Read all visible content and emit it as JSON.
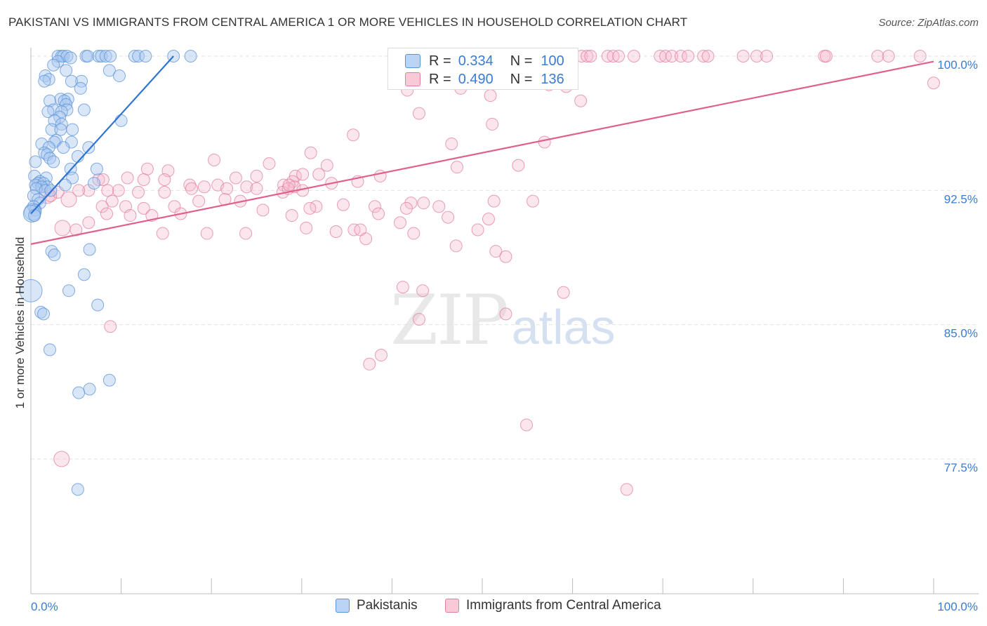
{
  "title": "PAKISTANI VS IMMIGRANTS FROM CENTRAL AMERICA 1 OR MORE VEHICLES IN HOUSEHOLD CORRELATION CHART",
  "source": "Source: ZipAtlas.com",
  "watermark": {
    "zip": "ZIP",
    "atlas": "atlas"
  },
  "colors": {
    "blue_fill": "#a8c8f0",
    "blue_stroke": "#5b93d8",
    "blue_line": "#2f74d0",
    "pink_fill": "#f5b8cb",
    "pink_stroke": "#e07fa0",
    "pink_line": "#e0608c",
    "tick_label": "#3a7bd5",
    "grid": "#e2e2e2",
    "axis": "#bbbbbb"
  },
  "legend": {
    "r_label": "R =",
    "n_label": "N =",
    "series": [
      {
        "r": "0.334",
        "n": "100"
      },
      {
        "r": "0.490",
        "n": "136"
      }
    ]
  },
  "chart_data": {
    "type": "scatter",
    "title": "PAKISTANI VS IMMIGRANTS FROM CENTRAL AMERICA 1 OR MORE VEHICLES IN HOUSEHOLD CORRELATION CHART",
    "xlabel": "",
    "ylabel": "1 or more Vehicles in Household",
    "xlim": [
      0,
      100
    ],
    "ylim": [
      70.0,
      101.5
    ],
    "grid": true,
    "x_tick_labels": [
      "0.0%",
      "100.0%"
    ],
    "y_ticks": [
      {
        "value": 77.5,
        "label": "77.5%"
      },
      {
        "value": 85.0,
        "label": "85.0%"
      },
      {
        "value": 92.5,
        "label": "92.5%"
      },
      {
        "value": 100.0,
        "label": "100.0%"
      }
    ],
    "series": [
      {
        "name": "Pakistanis",
        "color": "#a8c8f0",
        "trend": {
          "x0": 0.0,
          "y0": 91.2,
          "x1": 15.8,
          "y1": 100.0
        },
        "points": [
          [
            3.0,
            100
          ],
          [
            3.4,
            100
          ],
          [
            3.6,
            100
          ],
          [
            4.0,
            100
          ],
          [
            6.1,
            100
          ],
          [
            6.3,
            100
          ],
          [
            7.5,
            100
          ],
          [
            7.8,
            100
          ],
          [
            8.3,
            100
          ],
          [
            8.8,
            100
          ],
          [
            11.5,
            100
          ],
          [
            11.9,
            100
          ],
          [
            12.7,
            100
          ],
          [
            15.8,
            100
          ],
          [
            17.7,
            100
          ],
          [
            4.4,
            99.9
          ],
          [
            3.0,
            99.7
          ],
          [
            2.5,
            99.5
          ],
          [
            3.9,
            99.2
          ],
          [
            8.7,
            99.2
          ],
          [
            9.8,
            98.9
          ],
          [
            1.6,
            98.9
          ],
          [
            2.0,
            98.7
          ],
          [
            1.5,
            98.6
          ],
          [
            5.6,
            98.6
          ],
          [
            4.5,
            98.6
          ],
          [
            5.5,
            98.2
          ],
          [
            3.3,
            97.6
          ],
          [
            4.1,
            97.6
          ],
          [
            2.1,
            97.5
          ],
          [
            3.7,
            97.5
          ],
          [
            3.9,
            97.3
          ],
          [
            2.5,
            97.0
          ],
          [
            4.0,
            97.0
          ],
          [
            5.9,
            97.0
          ],
          [
            3.4,
            96.9
          ],
          [
            1.9,
            96.9
          ],
          [
            3.2,
            96.6
          ],
          [
            2.6,
            96.4
          ],
          [
            10.0,
            96.4
          ],
          [
            3.4,
            96.2
          ],
          [
            2.3,
            95.9
          ],
          [
            3.3,
            95.9
          ],
          [
            4.6,
            95.9
          ],
          [
            2.8,
            95.3
          ],
          [
            2.6,
            95.2
          ],
          [
            4.5,
            95.2
          ],
          [
            1.2,
            95.1
          ],
          [
            2.0,
            94.9
          ],
          [
            3.6,
            94.9
          ],
          [
            6.4,
            94.9
          ],
          [
            1.5,
            94.6
          ],
          [
            1.8,
            94.5
          ],
          [
            5.2,
            94.4
          ],
          [
            2.1,
            94.3
          ],
          [
            0.5,
            94.1
          ],
          [
            2.5,
            94.1
          ],
          [
            4.4,
            93.7
          ],
          [
            7.3,
            93.7
          ],
          [
            0.4,
            93.3
          ],
          [
            4.6,
            93.2
          ],
          [
            1.7,
            93.2
          ],
          [
            1.0,
            93.0
          ],
          [
            7.0,
            92.9
          ],
          [
            0.8,
            92.9
          ],
          [
            1.4,
            92.9
          ],
          [
            3.8,
            92.8
          ],
          [
            0.5,
            92.8
          ],
          [
            1.8,
            92.7
          ],
          [
            1.2,
            92.7
          ],
          [
            0.6,
            92.6
          ],
          [
            1.6,
            92.5
          ],
          [
            2.2,
            92.5
          ],
          [
            0.3,
            92.2
          ],
          [
            0.8,
            92.0
          ],
          [
            1.0,
            91.8
          ],
          [
            0.3,
            91.6
          ],
          [
            0.5,
            91.4
          ],
          [
            0.2,
            91.3
          ],
          [
            0.1,
            91.2
          ],
          [
            0.4,
            91.1
          ],
          [
            2.3,
            89.1
          ],
          [
            6.5,
            89.2
          ],
          [
            2.6,
            88.9
          ],
          [
            5.9,
            87.8
          ],
          [
            0.0,
            86.9
          ],
          [
            4.2,
            86.9
          ],
          [
            7.4,
            86.1
          ],
          [
            1.1,
            85.7
          ],
          [
            1.4,
            85.6
          ],
          [
            2.1,
            83.6
          ],
          [
            8.7,
            81.9
          ],
          [
            6.5,
            81.4
          ],
          [
            5.3,
            81.2
          ],
          [
            5.2,
            75.8
          ]
        ]
      },
      {
        "name": "Immigrants from Central America",
        "color": "#f5b8cb",
        "trend": {
          "x0": 0.0,
          "y0": 89.5,
          "x1": 100.0,
          "y1": 99.7
        },
        "points": [
          [
            53.5,
            100
          ],
          [
            55.3,
            100
          ],
          [
            55.6,
            100
          ],
          [
            56.6,
            100
          ],
          [
            57.9,
            100
          ],
          [
            59.0,
            100
          ],
          [
            59.2,
            100
          ],
          [
            61.0,
            100
          ],
          [
            61.6,
            100
          ],
          [
            62.0,
            100
          ],
          [
            63.9,
            100
          ],
          [
            64.5,
            100
          ],
          [
            65.1,
            100
          ],
          [
            66.8,
            100
          ],
          [
            69.7,
            100
          ],
          [
            70.3,
            100
          ],
          [
            71.0,
            100
          ],
          [
            72.0,
            100
          ],
          [
            72.8,
            100
          ],
          [
            74.5,
            100
          ],
          [
            75.0,
            100
          ],
          [
            78.9,
            100
          ],
          [
            80.4,
            100
          ],
          [
            81.5,
            100
          ],
          [
            87.9,
            100
          ],
          [
            88.1,
            100
          ],
          [
            93.8,
            100
          ],
          [
            95.0,
            100
          ],
          [
            98.5,
            100
          ],
          [
            48.6,
            99.1
          ],
          [
            45.6,
            98.9
          ],
          [
            54.9,
            98.8
          ],
          [
            57.4,
            98.4
          ],
          [
            100.0,
            98.5
          ],
          [
            41.7,
            98.1
          ],
          [
            47.6,
            98.2
          ],
          [
            59.3,
            98.3
          ],
          [
            50.9,
            97.8
          ],
          [
            60.9,
            97.5
          ],
          [
            43.0,
            96.8
          ],
          [
            51.1,
            96.2
          ],
          [
            35.7,
            95.6
          ],
          [
            46.6,
            95.1
          ],
          [
            56.9,
            95.2
          ],
          [
            31.0,
            94.6
          ],
          [
            20.3,
            94.2
          ],
          [
            26.4,
            94.0
          ],
          [
            47.2,
            93.8
          ],
          [
            54.0,
            93.9
          ],
          [
            32.8,
            93.9
          ],
          [
            15.2,
            93.6
          ],
          [
            12.9,
            93.7
          ],
          [
            29.3,
            93.3
          ],
          [
            31.9,
            93.4
          ],
          [
            38.7,
            93.3
          ],
          [
            22.7,
            93.2
          ],
          [
            30.1,
            93.4
          ],
          [
            10.7,
            93.2
          ],
          [
            12.5,
            93.1
          ],
          [
            7.5,
            93.1
          ],
          [
            8.0,
            93.1
          ],
          [
            14.8,
            93.1
          ],
          [
            25.0,
            93.3
          ],
          [
            29.0,
            93.0
          ],
          [
            33.3,
            92.9
          ],
          [
            36.2,
            93.0
          ],
          [
            23.9,
            92.7
          ],
          [
            28.0,
            92.8
          ],
          [
            29.2,
            92.7
          ],
          [
            20.7,
            92.8
          ],
          [
            17.6,
            92.8
          ],
          [
            19.2,
            92.7
          ],
          [
            17.8,
            92.6
          ],
          [
            30.1,
            92.5
          ],
          [
            21.7,
            92.6
          ],
          [
            25.0,
            92.6
          ],
          [
            27.9,
            92.4
          ],
          [
            28.5,
            92.6
          ],
          [
            28.6,
            92.8
          ],
          [
            6.4,
            92.5
          ],
          [
            5.3,
            92.5
          ],
          [
            9.7,
            92.5
          ],
          [
            3.0,
            92.4
          ],
          [
            11.9,
            92.4
          ],
          [
            14.8,
            92.4
          ],
          [
            8.5,
            92.5
          ],
          [
            1.8,
            92.2
          ],
          [
            2.2,
            92.2
          ],
          [
            4.2,
            92.0
          ],
          [
            9.0,
            91.9
          ],
          [
            18.6,
            91.9
          ],
          [
            21.5,
            92.0
          ],
          [
            23.2,
            91.9
          ],
          [
            34.6,
            91.7
          ],
          [
            42.1,
            91.8
          ],
          [
            51.3,
            91.9
          ],
          [
            55.6,
            91.9
          ],
          [
            38.1,
            91.6
          ],
          [
            43.5,
            91.8
          ],
          [
            31.6,
            91.6
          ],
          [
            7.9,
            91.6
          ],
          [
            10.5,
            91.6
          ],
          [
            12.5,
            91.5
          ],
          [
            15.9,
            91.6
          ],
          [
            25.7,
            91.4
          ],
          [
            30.9,
            91.5
          ],
          [
            41.6,
            91.5
          ],
          [
            45.2,
            91.6
          ],
          [
            8.4,
            91.2
          ],
          [
            11.0,
            91.1
          ],
          [
            13.4,
            91.1
          ],
          [
            16.6,
            91.2
          ],
          [
            28.9,
            91.1
          ],
          [
            38.5,
            91.2
          ],
          [
            46.2,
            91.0
          ],
          [
            50.7,
            90.9
          ],
          [
            40.9,
            90.7
          ],
          [
            6.4,
            90.7
          ],
          [
            3.5,
            90.4
          ],
          [
            5.0,
            90.3
          ],
          [
            14.6,
            90.1
          ],
          [
            19.5,
            90.1
          ],
          [
            23.8,
            90.1
          ],
          [
            30.5,
            90.4
          ],
          [
            33.8,
            90.2
          ],
          [
            35.8,
            90.3
          ],
          [
            36.5,
            90.3
          ],
          [
            42.4,
            90.1
          ],
          [
            49.5,
            90.3
          ],
          [
            37.1,
            89.8
          ],
          [
            47.1,
            89.4
          ],
          [
            51.5,
            89.1
          ],
          [
            52.6,
            88.8
          ],
          [
            41.2,
            87.1
          ],
          [
            43.4,
            86.9
          ],
          [
            59.0,
            86.8
          ],
          [
            52.6,
            85.6
          ],
          [
            43.0,
            85.3
          ],
          [
            8.8,
            84.9
          ],
          [
            38.8,
            83.3
          ],
          [
            37.5,
            82.8
          ],
          [
            54.9,
            79.4
          ],
          [
            3.4,
            77.5
          ],
          [
            66.0,
            75.8
          ]
        ]
      }
    ]
  }
}
